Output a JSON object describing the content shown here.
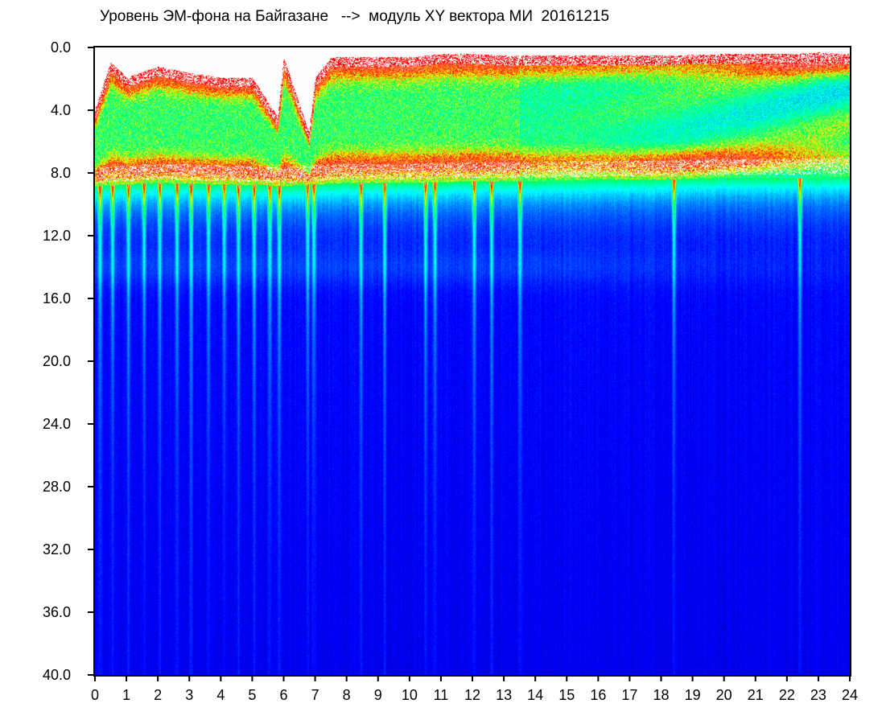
{
  "title": "Уровень ЭМ-фона на Байгазане   -->  модуль XY вектора МИ  20161215",
  "chart_data": {
    "type": "heatmap",
    "title": "Уровень ЭМ-фона на Байгазане   -->  модуль XY вектора МИ  20161215",
    "xlabel": "",
    "ylabel": "",
    "x_range": [
      0,
      24
    ],
    "y_range": [
      0.0,
      40.0
    ],
    "y_inverted": true,
    "x_ticks": [
      "0",
      "1",
      "2",
      "3",
      "4",
      "5",
      "6",
      "7",
      "8",
      "9",
      "10",
      "11",
      "12",
      "13",
      "14",
      "15",
      "16",
      "17",
      "18",
      "19",
      "20",
      "21",
      "22",
      "23",
      "24"
    ],
    "y_ticks": [
      "0.0",
      "4.0",
      "8.0",
      "12.0",
      "16.0",
      "20.0",
      "24.0",
      "28.0",
      "32.0",
      "36.0",
      "40.0"
    ],
    "colormap": [
      "#0000b4",
      "#0000ff",
      "#0078ff",
      "#00ffff",
      "#00ff60",
      "#ffff00",
      "#ff0000",
      "#ffffff"
    ],
    "grid": false,
    "legend": "none",
    "activity_band_top": [
      [
        0,
        4.5
      ],
      [
        0.5,
        1.5
      ],
      [
        1,
        2.5
      ],
      [
        2,
        1.8
      ],
      [
        3,
        2.2
      ],
      [
        4,
        2.5
      ],
      [
        5,
        2.5
      ],
      [
        5.8,
        5.0
      ],
      [
        6,
        1.2
      ],
      [
        6.8,
        6.0
      ],
      [
        7,
        2.5
      ],
      [
        7.5,
        1.2
      ],
      [
        9,
        1.2
      ],
      [
        10,
        1.2
      ],
      [
        11,
        1.0
      ],
      [
        12,
        1.0
      ],
      [
        13,
        1.1
      ],
      [
        14,
        1.1
      ],
      [
        16,
        1.1
      ],
      [
        18,
        1.1
      ],
      [
        20,
        1.0
      ],
      [
        22,
        1.0
      ],
      [
        23,
        0.9
      ],
      [
        24,
        1.0
      ]
    ],
    "activity_band_bottom": [
      [
        0,
        8.8
      ],
      [
        2,
        8.6
      ],
      [
        4,
        8.7
      ],
      [
        6,
        8.8
      ],
      [
        8,
        8.6
      ],
      [
        10,
        8.6
      ],
      [
        12,
        8.5
      ],
      [
        14,
        8.5
      ],
      [
        16,
        8.4
      ],
      [
        18,
        8.4
      ],
      [
        20,
        8.3
      ],
      [
        22,
        8.3
      ],
      [
        24,
        8.2
      ]
    ],
    "vertical_streaks": [
      0.15,
      0.55,
      1.05,
      1.55,
      2.05,
      2.6,
      3.05,
      3.6,
      4.1,
      4.55,
      5.05,
      5.55,
      5.85,
      6.75,
      6.95,
      8.45,
      9.2,
      10.5,
      10.8,
      12.05,
      12.6,
      13.5,
      18.4,
      22.4
    ]
  }
}
